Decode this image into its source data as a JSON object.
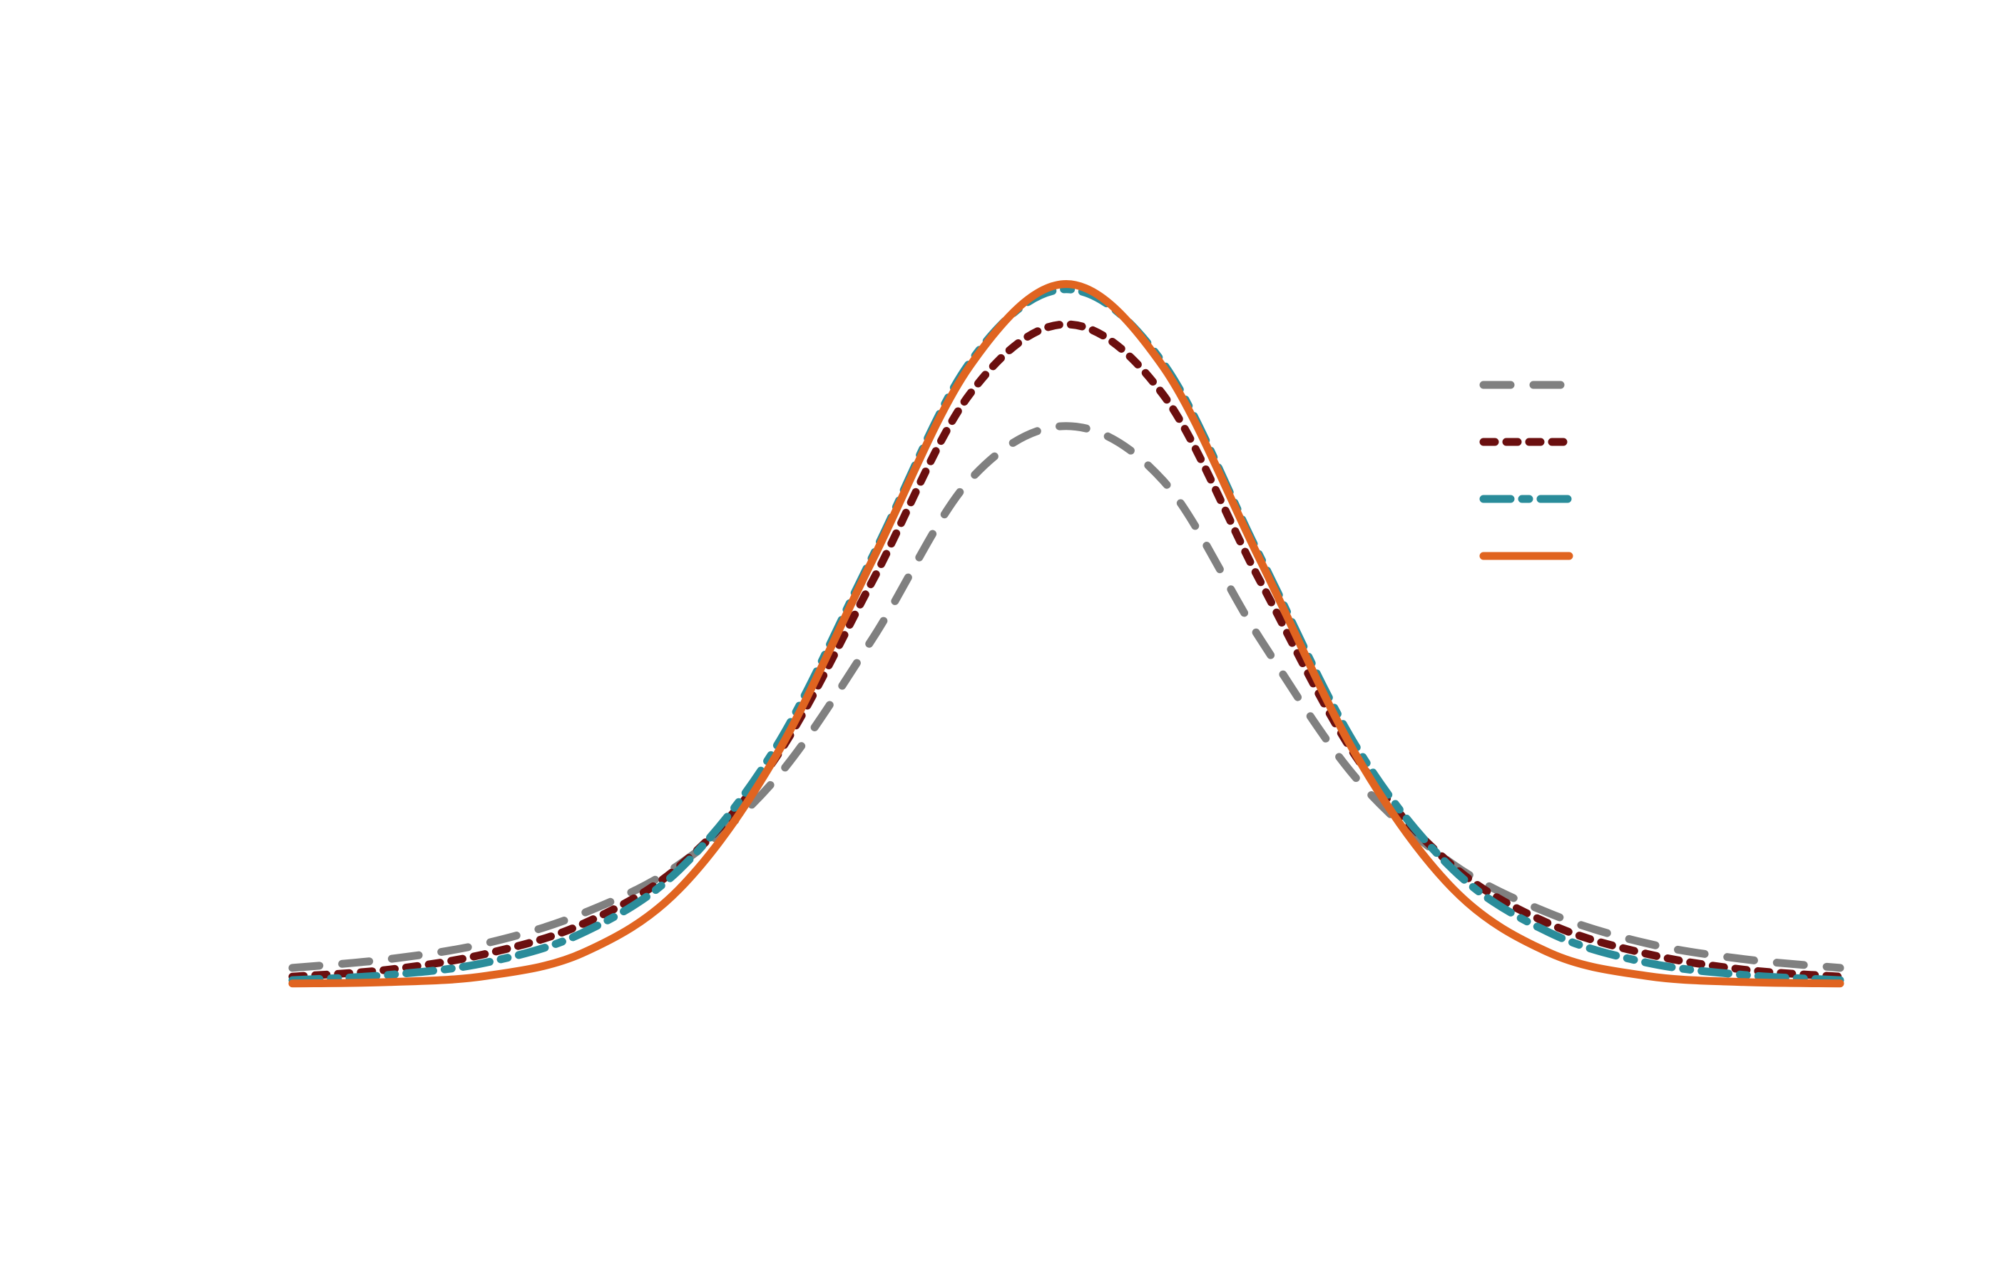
{
  "chart_data": {
    "type": "line",
    "title": "",
    "xlabel": "",
    "ylabel": "",
    "xlim": [
      -4,
      4
    ],
    "ylim": [
      0,
      0.5
    ],
    "grid": false,
    "axes_visible": false,
    "legend_position": "right",
    "x": [
      -4.0,
      -3.5,
      -3.0,
      -2.5,
      -2.0,
      -1.5,
      -1.0,
      -0.5,
      0.0,
      0.5,
      1.0,
      1.5,
      2.0,
      2.5,
      3.0,
      3.5,
      4.0
    ],
    "series": [
      {
        "color": "#808080",
        "line_style": "long-dash",
        "values": [
          0.009,
          0.014,
          0.023,
          0.04,
          0.068,
          0.117,
          0.197,
          0.287,
          0.318,
          0.287,
          0.197,
          0.117,
          0.068,
          0.04,
          0.023,
          0.014,
          0.009
        ]
      },
      {
        "color": "#6b0f0f",
        "line_style": "dotted",
        "values": [
          0.004,
          0.008,
          0.017,
          0.034,
          0.067,
          0.129,
          0.23,
          0.336,
          0.376,
          0.336,
          0.23,
          0.129,
          0.067,
          0.034,
          0.017,
          0.008,
          0.004
        ]
      },
      {
        "color": "#2a8c9a",
        "line_style": "dash-dot",
        "values": [
          0.002,
          0.005,
          0.012,
          0.029,
          0.065,
          0.135,
          0.244,
          0.354,
          0.396,
          0.354,
          0.244,
          0.135,
          0.065,
          0.029,
          0.012,
          0.005,
          0.002
        ]
      },
      {
        "color": "#e06420",
        "line_style": "solid",
        "values": [
          0.0001,
          0.0009,
          0.0044,
          0.0175,
          0.054,
          0.13,
          0.242,
          0.352,
          0.399,
          0.352,
          0.242,
          0.13,
          0.054,
          0.0175,
          0.0044,
          0.0009,
          0.0001
        ]
      }
    ]
  }
}
